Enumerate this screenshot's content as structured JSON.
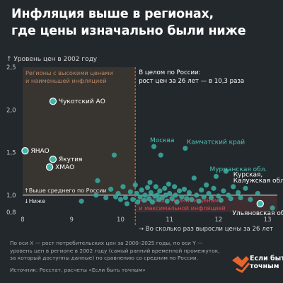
{
  "header": {
    "title_lines": [
      "Инфляция выше в регионах,",
      "где цены изначально были ниже"
    ]
  },
  "footnote_lines": [
    "По оси X — рост потребительских цен за 2000–2025 годы, по оси Y —",
    "уровень цен в регионе в 2002 году (самый ранний временной промежуток,",
    "за который доступны данные) по сравнению со средним по России."
  ],
  "source": "Источник: Росстат, расчеты «Если быть точным»",
  "brand": {
    "line1": "Если быть",
    "line2": "точным",
    "logo_icon": "heart-arrow-logo-icon",
    "logo_color": "#e8642c"
  },
  "colors": {
    "background": "#23282c",
    "point": "#3aa59a",
    "point_highlight": "#3fb6ab",
    "label_teal": "#4fc3b5",
    "high_region_fill": "#4a3f35",
    "high_region_text": "#b8866a",
    "low_region_fill": "#4a2f33",
    "low_region_text": "#d84b56",
    "divider_orange": "#e8642c",
    "reference_line": "#e8e8e8"
  },
  "chart_data": {
    "type": "scatter",
    "title": "",
    "ylabel": "Уровень цен в 2002 году",
    "xlabel": "Во сколько раз выросли цены за 26 лет",
    "xlim": [
      8,
      13.2
    ],
    "ylim": [
      0.8,
      2.5
    ],
    "xticks": [
      "8",
      "9",
      "10",
      "11",
      "12",
      "13"
    ],
    "yticks": [
      "0,8",
      "1,0",
      "1,5",
      "2,0",
      "2,5"
    ],
    "x_ticks_values": [
      8,
      9,
      10,
      11,
      12,
      13
    ],
    "y_ticks_values": [
      0.8,
      1.0,
      1.5,
      2.0,
      2.5
    ],
    "grid": false,
    "vline": {
      "x": 10.3,
      "label_lines": [
        "В целом по России:",
        "рост цен за 26 лет — в 10,3 раза"
      ]
    },
    "hline": {
      "y": 1.0,
      "above_label": "↑Выше среднего по России",
      "below_label": "↓Ниже"
    },
    "regions": [
      {
        "name": "high",
        "label_lines": [
          "Регионы с высокими ценами",
          "и наименьшей инфляцией"
        ]
      },
      {
        "name": "low",
        "label_lines": [
          "Регионы с низкими ценами",
          "и максимальной инфляцией"
        ]
      }
    ],
    "points": [
      {
        "x": 8.05,
        "y": 1.52,
        "label": "ЯНАО",
        "highlight": true
      },
      {
        "x": 8.62,
        "y": 2.1,
        "label": "Чукотский АО",
        "highlight": true
      },
      {
        "x": 8.62,
        "y": 1.42,
        "label": "Якутия",
        "highlight": true
      },
      {
        "x": 8.55,
        "y": 1.33,
        "label": "ХМАО",
        "highlight": true
      },
      {
        "x": 12.85,
        "y": 0.9,
        "label": "Ульяновская обл.",
        "highlight": true
      },
      {
        "x": 9.53,
        "y": 1.17
      },
      {
        "x": 9.2,
        "y": 0.93
      },
      {
        "x": 9.5,
        "y": 1.0
      },
      {
        "x": 9.7,
        "y": 0.97
      },
      {
        "x": 9.8,
        "y": 1.07
      },
      {
        "x": 9.87,
        "y": 1.47
      },
      {
        "x": 9.9,
        "y": 0.98
      },
      {
        "x": 9.95,
        "y": 1.02
      },
      {
        "x": 10.0,
        "y": 0.95
      },
      {
        "x": 10.05,
        "y": 1.1
      },
      {
        "x": 10.1,
        "y": 0.97
      },
      {
        "x": 10.13,
        "y": 0.9
      },
      {
        "x": 10.2,
        "y": 1.04
      },
      {
        "x": 10.25,
        "y": 0.95
      },
      {
        "x": 10.3,
        "y": 1.12
      },
      {
        "x": 10.33,
        "y": 1.02
      },
      {
        "x": 10.35,
        "y": 0.92
      },
      {
        "x": 10.4,
        "y": 0.98
      },
      {
        "x": 10.43,
        "y": 1.06
      },
      {
        "x": 10.48,
        "y": 0.94
      },
      {
        "x": 10.5,
        "y": 1.0
      },
      {
        "x": 10.55,
        "y": 1.09
      },
      {
        "x": 10.58,
        "y": 0.96
      },
      {
        "x": 10.6,
        "y": 1.15
      },
      {
        "x": 10.62,
        "y": 1.03
      },
      {
        "x": 10.65,
        "y": 0.92
      },
      {
        "x": 10.68,
        "y": 1.57
      },
      {
        "x": 10.7,
        "y": 0.99
      },
      {
        "x": 10.72,
        "y": 1.1
      },
      {
        "x": 10.75,
        "y": 1.0
      },
      {
        "x": 10.78,
        "y": 0.95
      },
      {
        "x": 10.8,
        "y": 1.05
      },
      {
        "x": 10.82,
        "y": 1.47
      },
      {
        "x": 10.85,
        "y": 0.97
      },
      {
        "x": 10.9,
        "y": 1.08
      },
      {
        "x": 10.92,
        "y": 1.0
      },
      {
        "x": 10.95,
        "y": 0.93
      },
      {
        "x": 10.98,
        "y": 1.13
      },
      {
        "x": 11.0,
        "y": 1.02
      },
      {
        "x": 11.05,
        "y": 0.96
      },
      {
        "x": 11.1,
        "y": 1.1
      },
      {
        "x": 11.12,
        "y": 1.0
      },
      {
        "x": 11.15,
        "y": 0.92
      },
      {
        "x": 11.2,
        "y": 1.05
      },
      {
        "x": 11.25,
        "y": 0.98
      },
      {
        "x": 11.3,
        "y": 1.07
      },
      {
        "x": 11.32,
        "y": 1.55
      },
      {
        "x": 11.35,
        "y": 0.96
      },
      {
        "x": 11.4,
        "y": 1.03
      },
      {
        "x": 11.45,
        "y": 0.95
      },
      {
        "x": 11.5,
        "y": 1.2
      },
      {
        "x": 11.55,
        "y": 1.0
      },
      {
        "x": 11.6,
        "y": 0.93
      },
      {
        "x": 11.65,
        "y": 1.06
      },
      {
        "x": 11.7,
        "y": 0.98
      },
      {
        "x": 11.75,
        "y": 1.12
      },
      {
        "x": 11.8,
        "y": 1.02
      },
      {
        "x": 11.85,
        "y": 0.97
      },
      {
        "x": 11.9,
        "y": 1.08
      },
      {
        "x": 11.95,
        "y": 1.22
      },
      {
        "x": 12.0,
        "y": 0.99
      },
      {
        "x": 12.05,
        "y": 0.94
      },
      {
        "x": 12.1,
        "y": 1.05
      },
      {
        "x": 12.15,
        "y": 1.28
      },
      {
        "x": 12.2,
        "y": 1.0
      },
      {
        "x": 12.25,
        "y": 0.96
      },
      {
        "x": 12.3,
        "y": 1.1
      },
      {
        "x": 12.4,
        "y": 1.03
      },
      {
        "x": 12.45,
        "y": 0.97
      },
      {
        "x": 12.55,
        "y": 1.08
      },
      {
        "x": 12.65,
        "y": 0.95
      },
      {
        "x": 12.8,
        "y": 1.02
      },
      {
        "x": 13.1,
        "y": 0.85
      }
    ],
    "annotations": [
      {
        "text": "Москва",
        "x": 10.6,
        "y": 1.62,
        "color": "label_teal"
      },
      {
        "text": "Камчатский край",
        "x": 11.35,
        "y": 1.6,
        "color": "label_teal"
      },
      {
        "text": "Мурманская обл.",
        "x": 11.82,
        "y": 1.28,
        "color": "label_teal"
      },
      {
        "text": "Курская,",
        "x": 12.3,
        "y": 1.22,
        "color": "white"
      },
      {
        "text": "Калужская обл.",
        "x": 12.3,
        "y": 1.15,
        "color": "white"
      }
    ]
  }
}
